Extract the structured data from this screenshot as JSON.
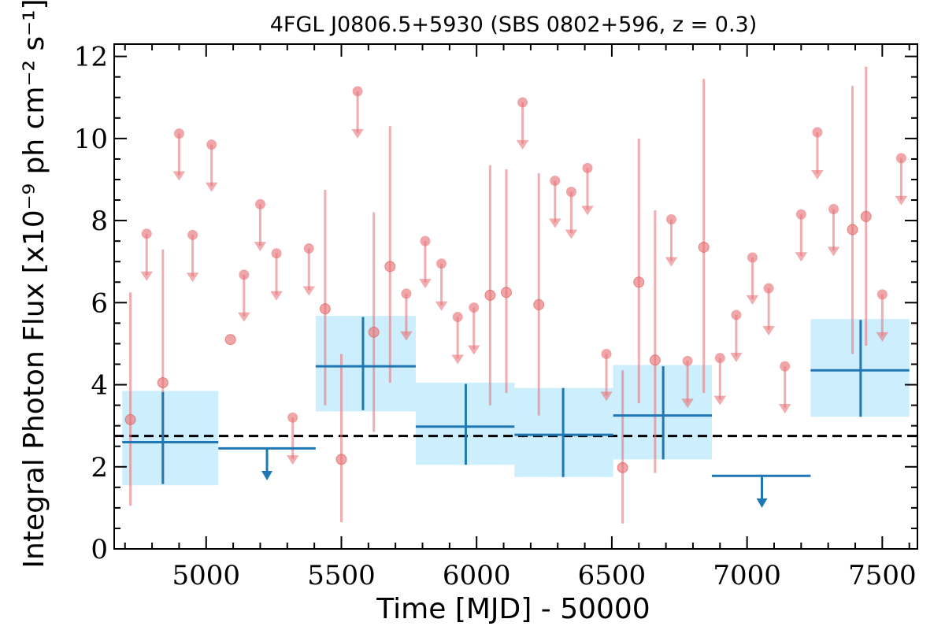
{
  "chart_data": {
    "type": "scatter",
    "title": "4FGL J0806.5+5930 (SBS 0802+596, z = 0.3)",
    "xlabel": "Time [MJD] - 50000",
    "ylabel": "Integral Photon Flux [x10⁻⁹ ph cm⁻² s⁻¹]",
    "xlim": [
      4660,
      7630
    ],
    "ylim": [
      0,
      12.3
    ],
    "x_ticks": [
      5000,
      5500,
      6000,
      6500,
      7000,
      7500
    ],
    "y_ticks": [
      0,
      2,
      4,
      6,
      8,
      10,
      12
    ],
    "grid": false,
    "mean_flux": 2.75,
    "colors": {
      "short_bins": "#e8777a",
      "long_bins": "#1f77b4",
      "long_band": "#cdeefd",
      "mean_line": "#000000"
    },
    "series": [
      {
        "points": [
          {
            "x": 4720,
            "y": 3.15,
            "lo": 1.05,
            "hi": 6.25
          },
          {
            "x": 4840,
            "y": 4.05,
            "lo": 1.6,
            "hi": 7.3
          },
          {
            "x": 5090,
            "y": 5.1,
            "lo": 5.1,
            "hi": 5.1
          },
          {
            "x": 5500,
            "y": 2.18,
            "lo": 0.65,
            "hi": 4.75
          },
          {
            "x": 5440,
            "y": 5.85,
            "lo": 3.5,
            "hi": 8.75
          },
          {
            "x": 5620,
            "y": 5.28,
            "lo": 2.85,
            "hi": 8.2
          },
          {
            "x": 5680,
            "y": 6.88,
            "lo": 4.05,
            "hi": 10.3
          },
          {
            "x": 6050,
            "y": 6.18,
            "lo": 3.5,
            "hi": 9.35
          },
          {
            "x": 6110,
            "y": 6.25,
            "lo": 3.8,
            "hi": 9.25
          },
          {
            "x": 6230,
            "y": 5.95,
            "lo": 3.25,
            "hi": 9.15
          },
          {
            "x": 6540,
            "y": 1.98,
            "lo": 0.62,
            "hi": 4.35
          },
          {
            "x": 6600,
            "y": 6.5,
            "lo": 3.55,
            "hi": 10.0
          },
          {
            "x": 6660,
            "y": 4.6,
            "lo": 1.85,
            "hi": 8.25
          },
          {
            "x": 6840,
            "y": 7.35,
            "lo": 3.8,
            "hi": 11.45
          },
          {
            "x": 7390,
            "y": 7.78,
            "lo": 4.75,
            "hi": 11.28
          },
          {
            "x": 7440,
            "y": 8.1,
            "lo": 4.95,
            "hi": 11.75
          }
        ],
        "upper_limits": [
          {
            "x": 4780,
            "y": 7.68
          },
          {
            "x": 4900,
            "y": 10.12
          },
          {
            "x": 4950,
            "y": 7.65
          },
          {
            "x": 5020,
            "y": 9.85
          },
          {
            "x": 5140,
            "y": 6.68
          },
          {
            "x": 5200,
            "y": 8.4
          },
          {
            "x": 5260,
            "y": 7.2
          },
          {
            "x": 5320,
            "y": 3.2
          },
          {
            "x": 5380,
            "y": 7.32
          },
          {
            "x": 5560,
            "y": 11.15
          },
          {
            "x": 5740,
            "y": 6.22
          },
          {
            "x": 5810,
            "y": 7.5
          },
          {
            "x": 5870,
            "y": 6.95
          },
          {
            "x": 5930,
            "y": 5.65
          },
          {
            "x": 5990,
            "y": 5.88
          },
          {
            "x": 6170,
            "y": 10.88
          },
          {
            "x": 6290,
            "y": 8.97
          },
          {
            "x": 6350,
            "y": 8.7
          },
          {
            "x": 6410,
            "y": 9.28
          },
          {
            "x": 6480,
            "y": 4.75
          },
          {
            "x": 6720,
            "y": 8.03
          },
          {
            "x": 6780,
            "y": 4.58
          },
          {
            "x": 6900,
            "y": 4.65
          },
          {
            "x": 6960,
            "y": 5.7
          },
          {
            "x": 7020,
            "y": 7.1
          },
          {
            "x": 7080,
            "y": 6.35
          },
          {
            "x": 7140,
            "y": 4.45
          },
          {
            "x": 7200,
            "y": 8.15
          },
          {
            "x": 7260,
            "y": 10.15
          },
          {
            "x": 7320,
            "y": 8.28
          },
          {
            "x": 7500,
            "y": 6.2
          },
          {
            "x": 7570,
            "y": 9.52
          }
        ]
      },
      {
        "bins": [
          {
            "x0": 4690,
            "x1": 5045,
            "xc": 4840,
            "y": 2.6,
            "lo": 1.58,
            "hi": 3.82,
            "band_lo": 1.55,
            "band_hi": 3.85
          },
          {
            "x0": 5405,
            "x1": 5775,
            "xc": 5580,
            "y": 4.45,
            "lo": 3.38,
            "hi": 5.65,
            "band_lo": 3.35,
            "band_hi": 5.68
          },
          {
            "x0": 5775,
            "x1": 6140,
            "xc": 5960,
            "y": 2.98,
            "lo": 2.05,
            "hi": 4.02,
            "band_lo": 2.05,
            "band_hi": 4.05
          },
          {
            "x0": 6140,
            "x1": 6505,
            "xc": 6320,
            "y": 2.78,
            "lo": 1.75,
            "hi": 3.92,
            "band_lo": 1.75,
            "band_hi": 3.92
          },
          {
            "x0": 6505,
            "x1": 6870,
            "xc": 6690,
            "y": 3.25,
            "lo": 2.18,
            "hi": 4.45,
            "band_lo": 2.18,
            "band_hi": 4.48
          },
          {
            "x0": 7235,
            "x1": 7600,
            "xc": 7420,
            "y": 4.35,
            "lo": 3.22,
            "hi": 5.58,
            "band_lo": 3.22,
            "band_hi": 5.6
          }
        ],
        "upper_limits": [
          {
            "x0": 5045,
            "x1": 5405,
            "xc": 5225,
            "y": 2.45
          },
          {
            "x0": 6870,
            "x1": 7235,
            "xc": 7055,
            "y": 1.78
          }
        ]
      }
    ]
  }
}
